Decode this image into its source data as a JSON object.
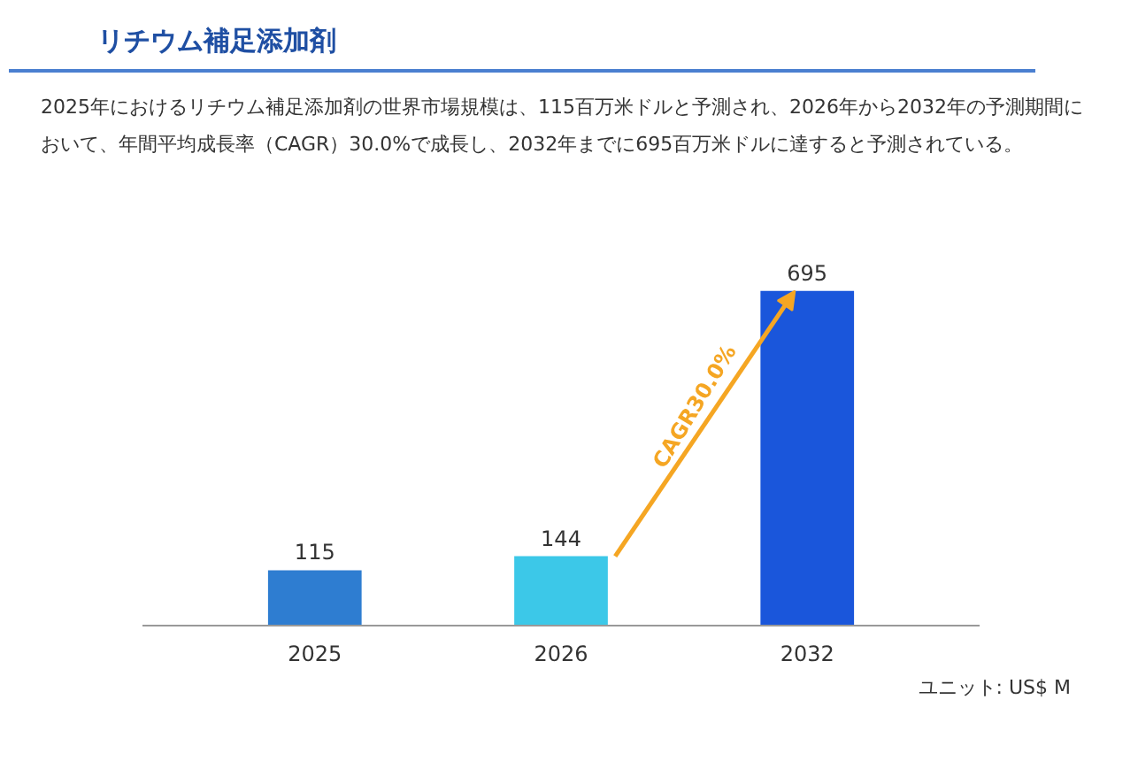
{
  "chart_data": {
    "type": "bar",
    "title": "リチウム補足添加剤",
    "subtitle": "2025年におけるリチウム補足添加剤の世界市場規模は、115百万米ドルと予測され、2026年から2032年の予測期間において、年間平均成長率（CAGR）30.0%で成長し、2032年までに695百万米ドルに達すると予測されている。",
    "categories": [
      "2025",
      "2026",
      "2032"
    ],
    "values": [
      115,
      144,
      695
    ],
    "colors": [
      "#2e7dd1",
      "#3cc8e8",
      "#1a56db"
    ],
    "data_labels": true,
    "annotations": [
      "CAGR30.0%",
      "ユニット: US$ M"
    ]
  }
}
